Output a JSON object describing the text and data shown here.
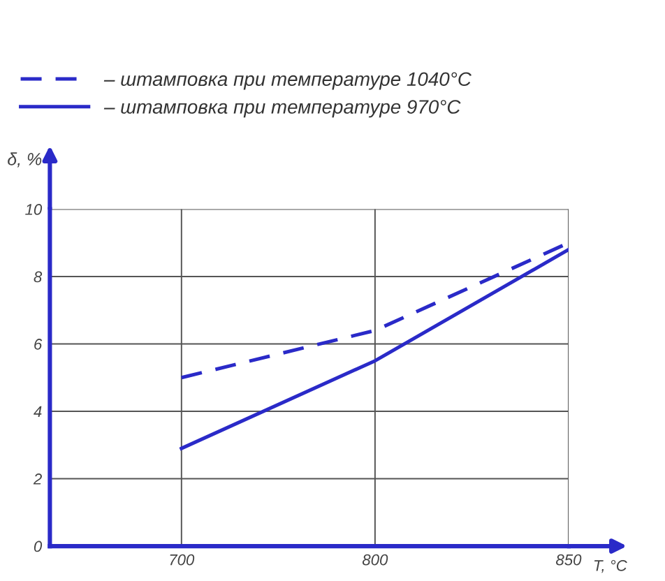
{
  "chart_data": {
    "type": "line",
    "xlabel": "T, °C",
    "ylabel": "δ, %",
    "categories": [
      "700",
      "800",
      "850"
    ],
    "series": [
      {
        "name": "– штамповка при температуре 1040°С",
        "color": "#2a2ac8",
        "values": [
          5.0,
          6.4,
          9.0
        ],
        "line_style": "dashed"
      },
      {
        "name": "– штамповка при температуре 970°С",
        "color": "#2a2ac8",
        "values": [
          2.9,
          5.5,
          8.8
        ],
        "line_style": "solid"
      }
    ],
    "ylim": [
      0,
      10
    ],
    "yticks": [
      0,
      2,
      4,
      6,
      8,
      10
    ],
    "grid": true,
    "legend": "top left",
    "marker": "none"
  }
}
